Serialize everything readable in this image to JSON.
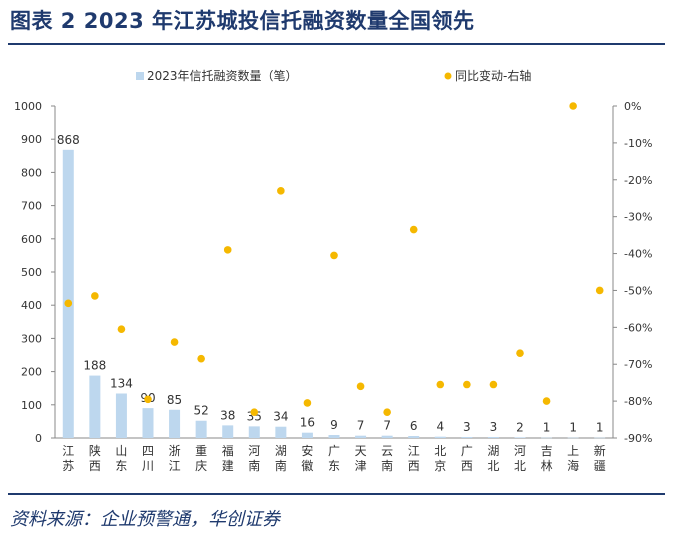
{
  "figure": {
    "title": "图表 2   2023 年江苏城投信托融资数量全国领先",
    "source": "资料来源：企业预警通，华创证券"
  },
  "colors": {
    "bar": "#bdd7ee",
    "dot": "#f5b800",
    "title": "#1f3a6e",
    "axis": "#888888"
  },
  "chart_data": {
    "type": "bar",
    "categories": [
      "江苏",
      "陕西",
      "山东",
      "四川",
      "浙江",
      "重庆",
      "福建",
      "河南",
      "湖南",
      "安徽",
      "广东",
      "天津",
      "云南",
      "江西",
      "北京",
      "广西",
      "湖北",
      "河北",
      "吉林",
      "上海",
      "新疆"
    ],
    "series": [
      {
        "name": "2023年信托融资数量（笔）",
        "type": "bar",
        "axis": "left",
        "values": [
          868,
          188,
          134,
          90,
          85,
          52,
          38,
          35,
          34,
          16,
          9,
          7,
          7,
          6,
          4,
          3,
          3,
          2,
          1,
          1,
          1
        ]
      },
      {
        "name": "同比变动-右轴",
        "type": "scatter",
        "axis": "right",
        "values": [
          -53.5,
          -51.5,
          -60.5,
          -79.5,
          -64,
          -68.5,
          -39,
          -83,
          -23,
          -80.5,
          -40.5,
          -76,
          -83,
          -33.5,
          -75.5,
          -75.5,
          -75.5,
          -67,
          -80,
          0,
          -50
        ]
      }
    ],
    "ylim": [
      0,
      1000
    ],
    "yticks": [
      0,
      100,
      200,
      300,
      400,
      500,
      600,
      700,
      800,
      900,
      1000
    ],
    "y2lim": [
      -90,
      0
    ],
    "y2ticks": [
      "0%",
      "-10%",
      "-20%",
      "-30%",
      "-40%",
      "-50%",
      "-60%",
      "-70%",
      "-80%",
      "-90%"
    ],
    "y2tick_values": [
      0,
      -10,
      -20,
      -30,
      -40,
      -50,
      -60,
      -70,
      -80,
      -90
    ],
    "grid": false,
    "legend": "top"
  }
}
